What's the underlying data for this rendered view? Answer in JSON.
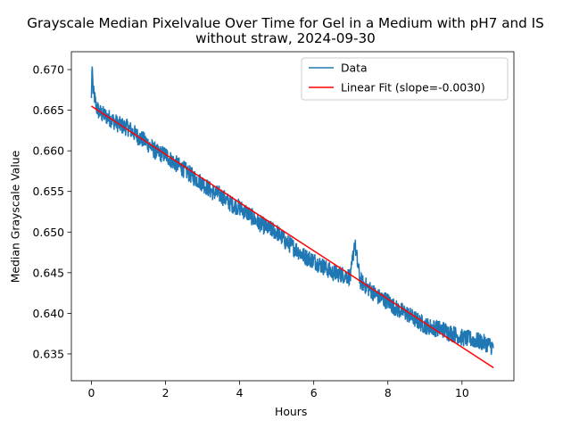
{
  "chart_data": {
    "type": "line",
    "title": "Grayscale Median Pixelvalue Over Time for Gel in a Medium with pH7 and IS without straw, 2024-09-30",
    "title_lines": [
      "Grayscale Median Pixelvalue Over Time for Gel in a Medium with pH7 and IS",
      "without straw, 2024-09-30"
    ],
    "xlabel": "Hours",
    "ylabel": "Median Grayscale Value",
    "xlim": [
      -0.54,
      11.4
    ],
    "ylim": [
      0.6317,
      0.6722
    ],
    "xticks": [
      0,
      2,
      4,
      6,
      8,
      10
    ],
    "xtick_labels": [
      "0",
      "2",
      "4",
      "6",
      "8",
      "10"
    ],
    "yticks": [
      0.635,
      0.64,
      0.645,
      0.65,
      0.655,
      0.66,
      0.665,
      0.67
    ],
    "ytick_labels": [
      "0.635",
      "0.640",
      "0.645",
      "0.650",
      "0.655",
      "0.660",
      "0.665",
      "0.670"
    ],
    "grid": false,
    "legend": "top-right",
    "series": [
      {
        "name": "Data",
        "color": "#1f77b4",
        "x": [
          0,
          0.02,
          0.05,
          0.08,
          0.12,
          0.2,
          0.3,
          0.5,
          0.75,
          1.0,
          1.25,
          1.5,
          1.75,
          2.0,
          2.25,
          2.5,
          2.75,
          3.0,
          3.25,
          3.5,
          3.75,
          4.0,
          4.25,
          4.5,
          4.75,
          5.0,
          5.25,
          5.5,
          5.75,
          6.0,
          6.25,
          6.5,
          6.75,
          7.0,
          7.1,
          7.25,
          7.5,
          7.75,
          8.0,
          8.25,
          8.5,
          8.75,
          9.0,
          9.25,
          9.5,
          9.75,
          10.0,
          10.25,
          10.5,
          10.7,
          10.85
        ],
        "y": [
          0.6665,
          0.6708,
          0.667,
          0.6668,
          0.6655,
          0.6648,
          0.6645,
          0.664,
          0.6632,
          0.6628,
          0.6618,
          0.661,
          0.6598,
          0.6595,
          0.6585,
          0.6577,
          0.6568,
          0.656,
          0.655,
          0.6545,
          0.6535,
          0.653,
          0.6522,
          0.6512,
          0.6505,
          0.65,
          0.6488,
          0.648,
          0.647,
          0.6465,
          0.6458,
          0.645,
          0.6448,
          0.6445,
          0.6488,
          0.644,
          0.643,
          0.642,
          0.6415,
          0.6405,
          0.64,
          0.6392,
          0.6385,
          0.6382,
          0.638,
          0.6375,
          0.637,
          0.6368,
          0.6365,
          0.6362,
          0.6358
        ],
        "noise_amplitude": 0.0011
      },
      {
        "name": "Linear Fit (slope=-0.0030)",
        "color": "#ff0000",
        "x": [
          0,
          10.85
        ],
        "y": [
          0.6655,
          0.6333
        ]
      }
    ]
  }
}
